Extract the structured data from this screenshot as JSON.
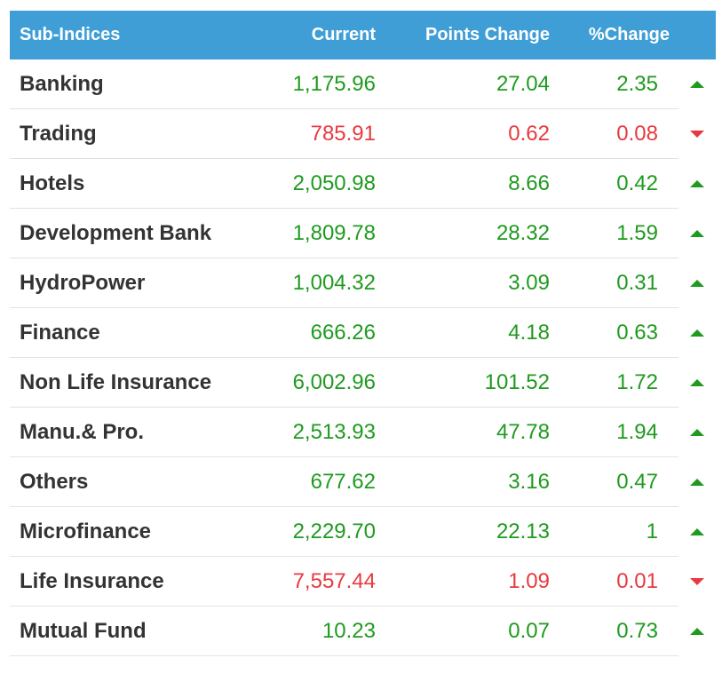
{
  "header": {
    "name": "Sub-Indices",
    "current": "Current",
    "points_change": "Points Change",
    "pct_change": "%Change"
  },
  "colors": {
    "header_bg": "#3f9ed6",
    "up": "#1f9a1f",
    "down": "#e8393f"
  },
  "rows": [
    {
      "name": "Banking",
      "current": "1,175.96",
      "points": "27.04",
      "pct": "2.35",
      "dir": "up"
    },
    {
      "name": "Trading",
      "current": "785.91",
      "points": "0.62",
      "pct": "0.08",
      "dir": "down"
    },
    {
      "name": "Hotels",
      "current": "2,050.98",
      "points": "8.66",
      "pct": "0.42",
      "dir": "up"
    },
    {
      "name": "Development Bank",
      "current": "1,809.78",
      "points": "28.32",
      "pct": "1.59",
      "dir": "up"
    },
    {
      "name": "HydroPower",
      "current": "1,004.32",
      "points": "3.09",
      "pct": "0.31",
      "dir": "up"
    },
    {
      "name": "Finance",
      "current": "666.26",
      "points": "4.18",
      "pct": "0.63",
      "dir": "up"
    },
    {
      "name": "Non Life Insurance",
      "current": "6,002.96",
      "points": "101.52",
      "pct": "1.72",
      "dir": "up"
    },
    {
      "name": "Manu.& Pro.",
      "current": "2,513.93",
      "points": "47.78",
      "pct": "1.94",
      "dir": "up"
    },
    {
      "name": "Others",
      "current": "677.62",
      "points": "3.16",
      "pct": "0.47",
      "dir": "up"
    },
    {
      "name": "Microfinance",
      "current": "2,229.70",
      "points": "22.13",
      "pct": "1",
      "dir": "up"
    },
    {
      "name": "Life Insurance",
      "current": "7,557.44",
      "points": "1.09",
      "pct": "0.01",
      "dir": "down"
    },
    {
      "name": "Mutual Fund",
      "current": "10.23",
      "points": "0.07",
      "pct": "0.73",
      "dir": "up"
    }
  ]
}
